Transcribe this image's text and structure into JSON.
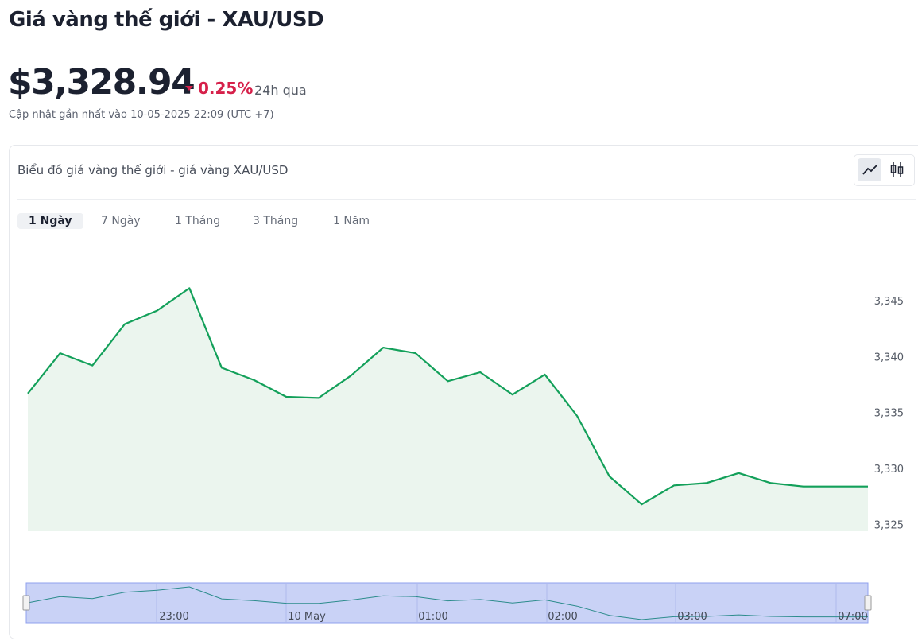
{
  "header": {
    "title": "Giá vàng thế giới - XAU/USD",
    "price": "$3,328.94",
    "change": "0.25%",
    "period": "24h qua",
    "updated": "Cập nhật gần nhất vào 10-05-2025 22:09 (UTC +7)"
  },
  "card": {
    "title": "Biểu đồ giá vàng thế giới - giá vàng XAU/USD",
    "tabs": [
      "1 Ngày",
      "7 Ngày",
      "1 Tháng",
      "3 Tháng",
      "1 Năm"
    ]
  },
  "chart_data": {
    "type": "area",
    "values": [
      3336.7,
      3340.3,
      3339.2,
      3342.9,
      3344.1,
      3346.1,
      3339.0,
      3337.9,
      3336.4,
      3336.3,
      3338.3,
      3340.8,
      3340.3,
      3337.8,
      3338.6,
      3336.6,
      3338.4,
      3334.7,
      3329.3,
      3326.8,
      3328.5,
      3328.7,
      3329.6,
      3328.7,
      3328.4,
      3328.4,
      3328.4
    ],
    "color": "#13a05a",
    "fill": "#ebf5ee",
    "ylim": [
      3324.4,
      3350
    ],
    "yticks": [
      {
        "value": 3325,
        "label": "3,325"
      },
      {
        "value": 3330,
        "label": "3,330"
      },
      {
        "value": 3335,
        "label": "3,335"
      },
      {
        "value": 3340,
        "label": "3,340"
      },
      {
        "value": 3345,
        "label": "3,345"
      }
    ],
    "navigator_labels": [
      "23:00",
      "10 May",
      "01:00",
      "02:00",
      "03:00",
      "07:00"
    ]
  }
}
